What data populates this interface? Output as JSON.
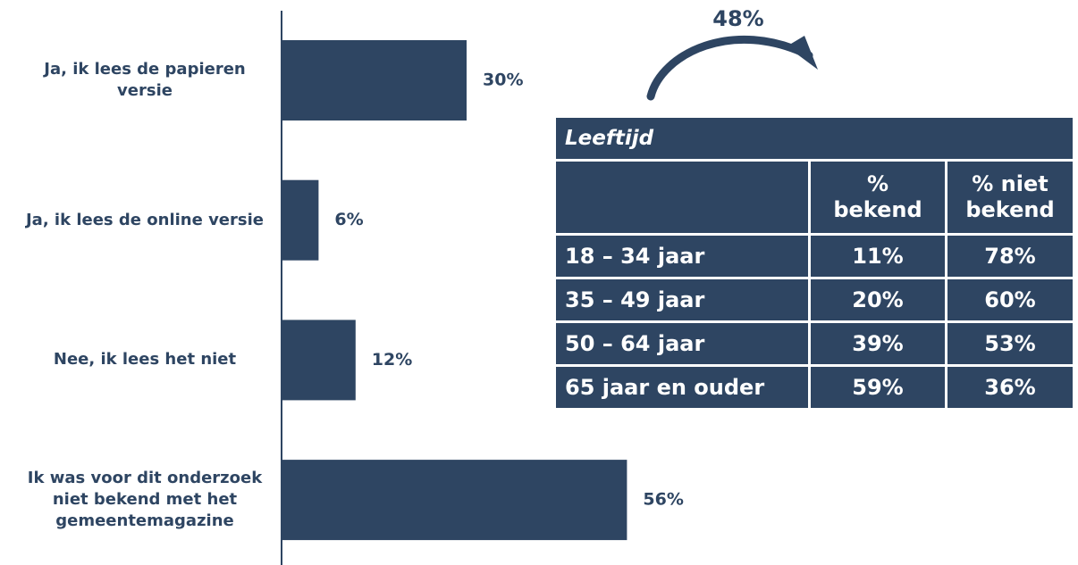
{
  "chart_data": {
    "type": "bar",
    "orientation": "horizontal",
    "categories": [
      "Ja, ik lees de papieren versie",
      "Ja, ik lees de online versie",
      "Nee, ik lees het niet",
      "Ik was voor dit onderzoek niet bekend met het gemeentemagazine"
    ],
    "values": [
      30,
      6,
      12,
      56
    ],
    "value_labels": [
      "30%",
      "6%",
      "12%",
      "56%"
    ],
    "color": "#2e4562",
    "annotations": [
      "48%"
    ]
  },
  "table": {
    "title": "Leeftijd",
    "columns": [
      "% bekend",
      "% niet bekend"
    ],
    "rows": [
      [
        "18 – 34 jaar",
        "11%",
        "78%"
      ],
      [
        "35 – 49 jaar",
        "20%",
        "60%"
      ],
      [
        "50 – 64 jaar",
        "39%",
        "53%"
      ],
      [
        "65 jaar en ouder",
        "59%",
        "36%"
      ]
    ]
  }
}
